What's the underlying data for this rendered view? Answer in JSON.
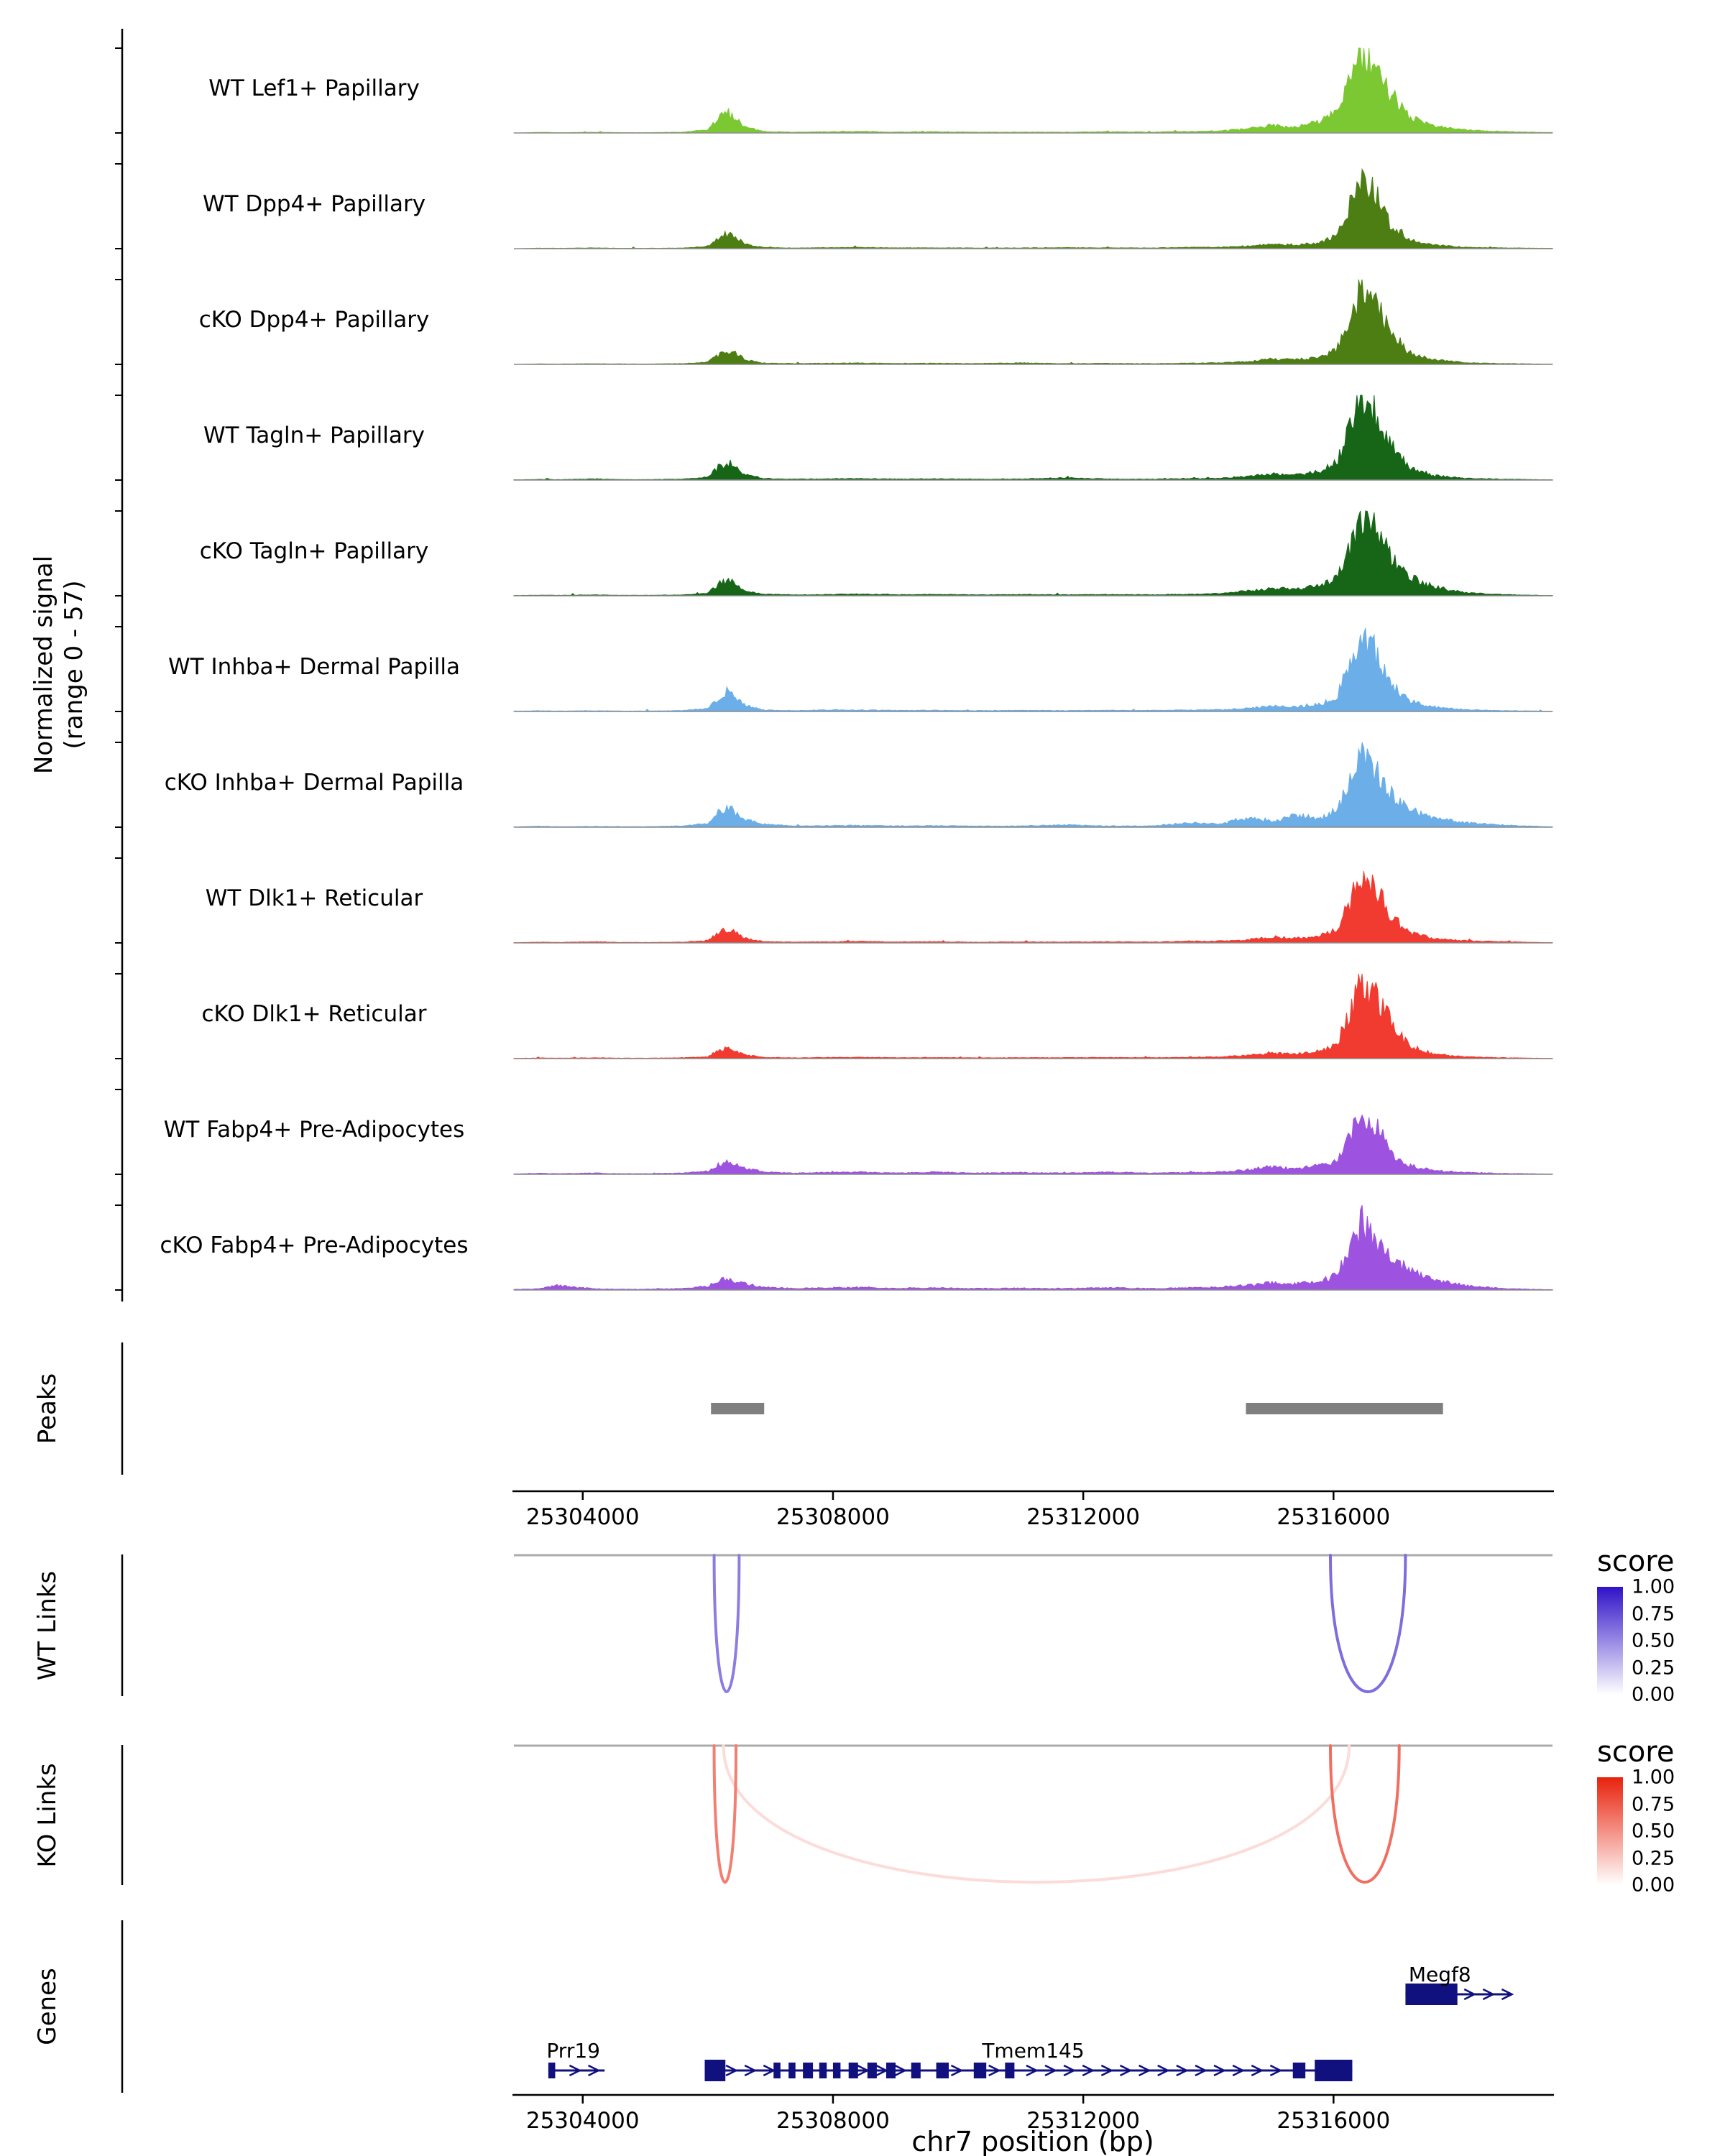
{
  "labels": {
    "signal_axis_line1": "Normalized signal",
    "signal_axis_line2": "(range 0 - 57)",
    "peaks": "Peaks",
    "wt_links": "WT Links",
    "ko_links": "KO Links",
    "genes": "Genes",
    "x_axis": "chr7 position (bp)",
    "legend_title": "score"
  },
  "chart_data": {
    "type": "area",
    "chrom": "chr7",
    "x_units": "bp",
    "x_range": [
      25302900,
      25319500
    ],
    "x_ticks": [
      25304000,
      25308000,
      25312000,
      25316000
    ],
    "signal_range": [
      0,
      57
    ],
    "x": [
      25303000,
      25303300,
      25303600,
      25304200,
      25304600,
      25305000,
      25305600,
      25306000,
      25306150,
      25306300,
      25306450,
      25306600,
      25306900,
      25307400,
      25307900,
      25308400,
      25309000,
      25309600,
      25310300,
      25311000,
      25311700,
      25312400,
      25313100,
      25313700,
      25314200,
      25314600,
      25315000,
      25315400,
      25315800,
      25316050,
      25316250,
      25316450,
      25316650,
      25316900,
      25317200,
      25317600,
      25318100,
      25318700,
      25319400
    ],
    "tracks": [
      {
        "label": "WT Lef1+ Papillary",
        "color": "#7CC832",
        "values": [
          0,
          0.5,
          0.2,
          0.4,
          0.2,
          0.2,
          0.5,
          2,
          9,
          14,
          10,
          4,
          1,
          0.5,
          0.8,
          1,
          0.6,
          0.8,
          0.5,
          0.6,
          0.5,
          0.8,
          0.6,
          1,
          1.5,
          2.5,
          5,
          4,
          8,
          15,
          36,
          52,
          46,
          27,
          11,
          4.5,
          2,
          1,
          0.3
        ]
      },
      {
        "label": "WT Dpp4+ Papillary",
        "color": "#4D7E14",
        "values": [
          0,
          0.3,
          0.2,
          0.5,
          0.2,
          0.2,
          0.4,
          1.5,
          7,
          10,
          8,
          3,
          0.8,
          0.4,
          0.6,
          0.8,
          0.5,
          0.6,
          0.4,
          0.5,
          0.6,
          0.5,
          0.5,
          0.8,
          1,
          1.5,
          3,
          2.5,
          4,
          9,
          28,
          50,
          40,
          18,
          6,
          2.5,
          1,
          0.5,
          0.2
        ]
      },
      {
        "label": "cKO Dpp4+ Papillary",
        "color": "#4D7E14",
        "values": [
          0,
          0.3,
          0.2,
          0.4,
          0.3,
          0.2,
          0.5,
          1.5,
          6,
          9,
          7,
          3,
          0.8,
          0.5,
          0.7,
          0.9,
          0.5,
          0.7,
          0.5,
          1,
          0.5,
          0.6,
          0.5,
          0.8,
          1,
          1.8,
          3.5,
          3,
          5,
          10,
          30,
          52,
          44,
          22,
          8,
          3,
          1.2,
          0.5,
          0.2
        ]
      },
      {
        "label": "WT Tagln+ Papillary",
        "color": "#176617",
        "values": [
          0.2,
          0.4,
          0.3,
          0.8,
          0.3,
          0.3,
          0.6,
          2,
          8,
          12,
          9,
          3.5,
          1,
          0.6,
          0.8,
          1,
          0.7,
          0.8,
          0.6,
          0.7,
          1.5,
          0.7,
          0.6,
          1,
          1.2,
          2.5,
          4,
          3.5,
          6,
          12,
          33,
          54,
          46,
          25,
          9,
          3,
          1.2,
          0.6,
          0.2
        ]
      },
      {
        "label": "cKO Tagln+ Papillary",
        "color": "#176617",
        "values": [
          0.2,
          0.4,
          0.3,
          0.6,
          0.3,
          0.3,
          0.5,
          2,
          7,
          11,
          8,
          3,
          1,
          0.6,
          0.8,
          1.2,
          0.7,
          0.9,
          0.6,
          0.8,
          0.7,
          0.8,
          0.7,
          1,
          1.5,
          3,
          5,
          4,
          7,
          12,
          30,
          55,
          44,
          27,
          13,
          6,
          2,
          0.8,
          0.2
        ]
      },
      {
        "label": "WT Inhba+ Dermal Papilla",
        "color": "#6BAEE8",
        "values": [
          0.3,
          0.5,
          0.3,
          0.5,
          0.3,
          0.3,
          0.6,
          2,
          8,
          13,
          10,
          4,
          1,
          0.6,
          1,
          1,
          0.7,
          0.8,
          0.6,
          0.7,
          0.6,
          0.8,
          0.7,
          1,
          1.2,
          2,
          3.5,
          3,
          5,
          10,
          31,
          52,
          42,
          19,
          7,
          3,
          1.2,
          0.6,
          0.2
        ]
      },
      {
        "label": "cKO Inhba+ Dermal Papilla",
        "color": "#6BAEE8",
        "values": [
          0.3,
          0.6,
          0.3,
          0.5,
          0.3,
          0.3,
          0.8,
          2.5,
          9,
          14,
          9,
          5,
          2,
          0.8,
          1,
          1.2,
          0.8,
          1,
          0.7,
          0.8,
          1.5,
          0.8,
          0.8,
          3,
          2,
          6,
          4,
          8,
          6,
          12,
          28,
          50,
          40,
          24,
          12,
          6,
          3,
          1.5,
          0.3
        ]
      },
      {
        "label": "WT Dlk1+ Reticular",
        "color": "#F23B30",
        "values": [
          0.2,
          0.5,
          0.3,
          0.8,
          0.3,
          0.3,
          0.5,
          1.5,
          6,
          9,
          7,
          3,
          0.8,
          0.5,
          0.8,
          1,
          0.6,
          0.8,
          0.5,
          0.7,
          0.6,
          0.8,
          0.6,
          1,
          1.2,
          2,
          4,
          3,
          5,
          9,
          26,
          48,
          40,
          19,
          7,
          3,
          1.5,
          0.8,
          0.2
        ]
      },
      {
        "label": "cKO Dlk1+ Reticular",
        "color": "#F23B30",
        "values": [
          0.2,
          0.4,
          0.3,
          0.5,
          0.3,
          0.3,
          0.5,
          1.2,
          5,
          7,
          5,
          2.5,
          0.8,
          0.5,
          0.7,
          0.9,
          0.6,
          0.7,
          0.5,
          0.6,
          0.6,
          0.7,
          0.6,
          0.9,
          1.2,
          2,
          3.5,
          3,
          5,
          10,
          30,
          52,
          46,
          27,
          9,
          3,
          1.2,
          0.6,
          0.2
        ]
      },
      {
        "label": "WT Fabp4+ Pre-Adipocytes",
        "color": "#9D53E0",
        "values": [
          0.3,
          0.6,
          0.4,
          0.8,
          0.4,
          0.4,
          0.8,
          2,
          6,
          8,
          6,
          4,
          1.5,
          0.8,
          1.2,
          1.5,
          0.8,
          1.5,
          0.8,
          1.2,
          0.8,
          1.5,
          0.8,
          1.2,
          1.5,
          3,
          5,
          3.5,
          6,
          9,
          24,
          44,
          36,
          15,
          6,
          2.5,
          1.2,
          0.6,
          0.2
        ]
      },
      {
        "label": "cKO Fabp4+ Pre-Adipocytes",
        "color": "#9D53E0",
        "values": [
          0.4,
          0.8,
          3,
          0.8,
          0.5,
          0.5,
          1,
          2.5,
          6,
          8,
          6,
          4,
          2,
          1,
          1.5,
          1.8,
          1,
          1.5,
          1,
          1.2,
          1,
          1.5,
          1,
          1.5,
          2,
          3,
          5,
          4,
          6,
          10,
          26,
          46,
          34,
          21,
          15,
          7,
          3,
          1,
          0.3
        ]
      }
    ],
    "peaks": [
      {
        "start": 25306050,
        "end": 25306900
      },
      {
        "start": 25314600,
        "end": 25317750
      }
    ],
    "wt_links": [
      {
        "start": 25306100,
        "end": 25306500,
        "score": 0.55
      },
      {
        "start": 25315950,
        "end": 25317150,
        "score": 0.62
      }
    ],
    "ko_links": [
      {
        "start": 25306250,
        "end": 25316250,
        "score": 0.16
      },
      {
        "start": 25306100,
        "end": 25306450,
        "score": 0.58
      },
      {
        "start": 25315950,
        "end": 25317050,
        "score": 0.65
      }
    ],
    "links_legend": {
      "title": "score",
      "ticks": [
        "1.00",
        "0.75",
        "0.50",
        "0.25",
        "0.00"
      ],
      "wt_high_color": "#3012C8",
      "ko_high_color": "#E8220C"
    },
    "genes": [
      {
        "name": "Prr19",
        "strand": "+",
        "row": 1,
        "start": 25303450,
        "end": 25304350,
        "exons": [
          [
            25303450,
            25303560
          ]
        ],
        "label_bp": 25303850
      },
      {
        "name": "Tmem145",
        "strand": "+",
        "row": 1,
        "start": 25305950,
        "end": 25316300,
        "exons": [
          [
            25305950,
            25306280
          ],
          [
            25307050,
            25307160
          ],
          [
            25307290,
            25307400
          ],
          [
            25307520,
            25307680
          ],
          [
            25307780,
            25307900
          ],
          [
            25308000,
            25308120
          ],
          [
            25308250,
            25308400
          ],
          [
            25308550,
            25308700
          ],
          [
            25308850,
            25309000
          ],
          [
            25309250,
            25309400
          ],
          [
            25309650,
            25309850
          ],
          [
            25310250,
            25310450
          ],
          [
            25310750,
            25310900
          ],
          [
            25315350,
            25315550
          ],
          [
            25315700,
            25316300
          ]
        ],
        "label_bp": 25311200
      },
      {
        "name": "Megf8",
        "strand": "+",
        "row": 0,
        "start": 25317150,
        "end": 25318850,
        "exons": [
          [
            25317150,
            25317980
          ]
        ],
        "label_bp": 25317700
      }
    ],
    "gene_color": "#10107E",
    "peak_color": "#7F7F7F"
  }
}
